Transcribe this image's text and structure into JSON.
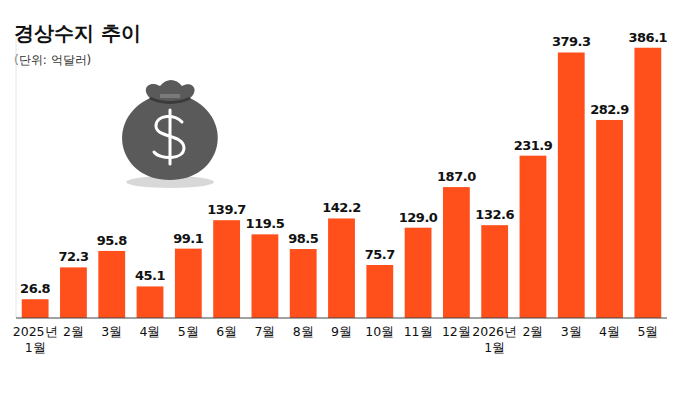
{
  "chart_data": {
    "type": "bar",
    "title": "경상수지 추이",
    "subtitle": "(단위: 억달러)",
    "categories": [
      "2025년 1월",
      "2월",
      "3월",
      "4월",
      "5월",
      "6월",
      "7월",
      "8월",
      "9월",
      "10월",
      "11월",
      "12월",
      "2026년 1월",
      "2월",
      "3월",
      "4월",
      "5월"
    ],
    "values": [
      26.8,
      72.3,
      95.8,
      45.1,
      99.1,
      139.7,
      119.5,
      98.5,
      142.2,
      75.7,
      129.0,
      187.0,
      132.6,
      231.9,
      379.3,
      282.9,
      386.1
    ],
    "value_labels": [
      "26.8",
      "72.3",
      "95.8",
      "45.1",
      "99.1",
      "139.7",
      "119.5",
      "98.5",
      "142.2",
      "75.7",
      "129.0",
      "187.0",
      "132.6",
      "231.9",
      "379.3",
      "282.9",
      "386.1"
    ],
    "color": "#ff4f1a",
    "ylim": [
      0,
      400
    ],
    "grid": false,
    "data_labels": true,
    "tick_labels": "x"
  }
}
